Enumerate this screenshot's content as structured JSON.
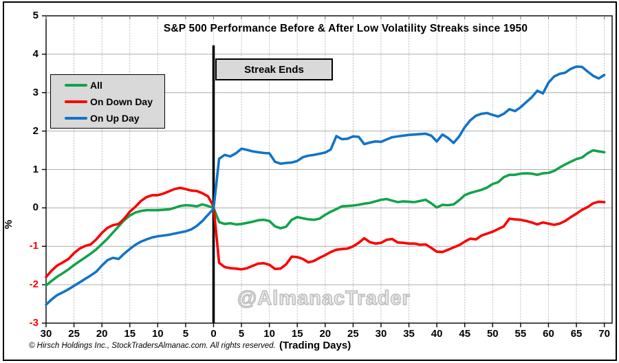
{
  "meta": {
    "title": "S&P 500 Performance Before & After Low Volatility Streaks since 1950"
  },
  "annotations": {
    "streak_ends": "Streak Ends",
    "watermark": "@AlmanacTrader",
    "copyright": "© Hirsch Holdings Inc., StockTradersAlmanac.com. All rights reserved.",
    "x_axis_title": "(Trading Days)",
    "y_axis_title": "%"
  },
  "legend": {
    "items": [
      {
        "label": "All",
        "color": "#12A34B"
      },
      {
        "label": "On Down Day",
        "color": "#FA0000"
      },
      {
        "label": "On Up Day",
        "color": "#1273C8"
      }
    ]
  },
  "colors": {
    "negative_tick": "#FF0000",
    "positive_tick": "#000000",
    "grid_horizontal": "#ABABAB",
    "grid_vertical": "#C4C4C4",
    "plot_border": "#000000",
    "event_line": "#000000",
    "box_fill": "#D9D9D9"
  },
  "chart_data": {
    "type": "line",
    "title": "S&P 500 Performance Before & After Low Volatility Streaks since 1950",
    "xlabel": "(Trading Days)",
    "ylabel": "%",
    "xlim": [
      -30,
      71.4
    ],
    "ylim": [
      -3,
      5
    ],
    "x_tick_step": 5,
    "y_tick_step": 1,
    "x_tick_labels_absolute": true,
    "grid": true,
    "legend_position": "top-left",
    "event_line_x": 0,
    "x": [
      -30,
      -29,
      -28,
      -27,
      -26,
      -25,
      -24,
      -23,
      -22,
      -21,
      -20,
      -19,
      -18,
      -17,
      -16,
      -15,
      -14,
      -13,
      -12,
      -11,
      -10,
      -9,
      -8,
      -7,
      -6,
      -5,
      -4,
      -3,
      -2,
      -1,
      0,
      1,
      2,
      3,
      4,
      5,
      6,
      7,
      8,
      9,
      10,
      11,
      12,
      13,
      14,
      15,
      16,
      17,
      18,
      19,
      20,
      21,
      22,
      23,
      24,
      25,
      26,
      27,
      28,
      29,
      30,
      31,
      32,
      33,
      34,
      35,
      36,
      37,
      38,
      39,
      40,
      41,
      42,
      43,
      44,
      45,
      46,
      47,
      48,
      49,
      50,
      51,
      52,
      53,
      54,
      55,
      56,
      57,
      58,
      59,
      60,
      61,
      62,
      63,
      64,
      65,
      66,
      67,
      68,
      69,
      70
    ],
    "series": [
      {
        "name": "All",
        "color": "#12A34B",
        "values": [
          -2.02,
          -1.9,
          -1.79,
          -1.7,
          -1.6,
          -1.49,
          -1.39,
          -1.29,
          -1.19,
          -1.08,
          -0.94,
          -0.8,
          -0.64,
          -0.48,
          -0.32,
          -0.2,
          -0.12,
          -0.08,
          -0.06,
          -0.06,
          -0.06,
          -0.05,
          -0.04,
          0.0,
          0.05,
          0.07,
          0.06,
          0.04,
          0.09,
          0.05,
          0.0,
          -0.37,
          -0.42,
          -0.4,
          -0.43,
          -0.42,
          -0.39,
          -0.36,
          -0.32,
          -0.31,
          -0.34,
          -0.48,
          -0.53,
          -0.49,
          -0.31,
          -0.24,
          -0.27,
          -0.3,
          -0.31,
          -0.28,
          -0.18,
          -0.1,
          -0.03,
          0.04,
          0.05,
          0.06,
          0.08,
          0.11,
          0.13,
          0.17,
          0.21,
          0.23,
          0.19,
          0.15,
          0.17,
          0.16,
          0.15,
          0.18,
          0.21,
          0.12,
          0.01,
          0.08,
          0.07,
          0.09,
          0.2,
          0.33,
          0.39,
          0.43,
          0.47,
          0.53,
          0.62,
          0.67,
          0.8,
          0.86,
          0.86,
          0.89,
          0.9,
          0.89,
          0.86,
          0.9,
          0.91,
          0.96,
          1.05,
          1.13,
          1.2,
          1.27,
          1.31,
          1.42,
          1.5,
          1.47,
          1.45
        ]
      },
      {
        "name": "On Down Day",
        "color": "#FA0000",
        "values": [
          -1.8,
          -1.63,
          -1.5,
          -1.42,
          -1.33,
          -1.18,
          -1.06,
          -0.99,
          -0.95,
          -0.82,
          -0.65,
          -0.52,
          -0.45,
          -0.42,
          -0.28,
          -0.1,
          0.03,
          0.18,
          0.28,
          0.33,
          0.33,
          0.37,
          0.43,
          0.49,
          0.52,
          0.49,
          0.45,
          0.44,
          0.38,
          0.3,
          0.04,
          -1.43,
          -1.54,
          -1.57,
          -1.58,
          -1.6,
          -1.57,
          -1.51,
          -1.45,
          -1.44,
          -1.48,
          -1.59,
          -1.58,
          -1.47,
          -1.27,
          -1.28,
          -1.33,
          -1.42,
          -1.38,
          -1.3,
          -1.23,
          -1.15,
          -1.09,
          -1.07,
          -1.06,
          -1.0,
          -0.91,
          -0.79,
          -0.89,
          -0.93,
          -0.91,
          -0.83,
          -0.81,
          -0.9,
          -0.91,
          -0.93,
          -0.93,
          -0.96,
          -0.95,
          -1.04,
          -1.14,
          -1.15,
          -1.09,
          -1.03,
          -0.97,
          -0.88,
          -0.8,
          -0.82,
          -0.72,
          -0.67,
          -0.62,
          -0.55,
          -0.48,
          -0.28,
          -0.3,
          -0.31,
          -0.34,
          -0.38,
          -0.43,
          -0.38,
          -0.41,
          -0.44,
          -0.41,
          -0.34,
          -0.24,
          -0.15,
          -0.05,
          0.02,
          0.12,
          0.16,
          0.15
        ]
      },
      {
        "name": "On Up Day",
        "color": "#1273C8",
        "values": [
          -2.52,
          -2.38,
          -2.27,
          -2.2,
          -2.12,
          -2.03,
          -1.94,
          -1.85,
          -1.76,
          -1.66,
          -1.5,
          -1.36,
          -1.3,
          -1.33,
          -1.19,
          -1.07,
          -0.96,
          -0.88,
          -0.82,
          -0.77,
          -0.74,
          -0.72,
          -0.7,
          -0.67,
          -0.64,
          -0.61,
          -0.56,
          -0.47,
          -0.34,
          -0.18,
          -0.02,
          1.28,
          1.38,
          1.34,
          1.42,
          1.54,
          1.51,
          1.47,
          1.45,
          1.43,
          1.42,
          1.2,
          1.15,
          1.17,
          1.18,
          1.22,
          1.32,
          1.36,
          1.38,
          1.41,
          1.44,
          1.52,
          1.87,
          1.79,
          1.8,
          1.86,
          1.85,
          1.66,
          1.7,
          1.73,
          1.72,
          1.78,
          1.84,
          1.86,
          1.88,
          1.9,
          1.91,
          1.92,
          1.93,
          1.88,
          1.73,
          1.91,
          1.82,
          1.69,
          1.86,
          2.1,
          2.28,
          2.4,
          2.45,
          2.47,
          2.42,
          2.38,
          2.45,
          2.57,
          2.52,
          2.62,
          2.75,
          2.88,
          3.05,
          2.98,
          3.26,
          3.42,
          3.49,
          3.52,
          3.62,
          3.68,
          3.67,
          3.55,
          3.44,
          3.37,
          3.46
        ]
      }
    ]
  }
}
